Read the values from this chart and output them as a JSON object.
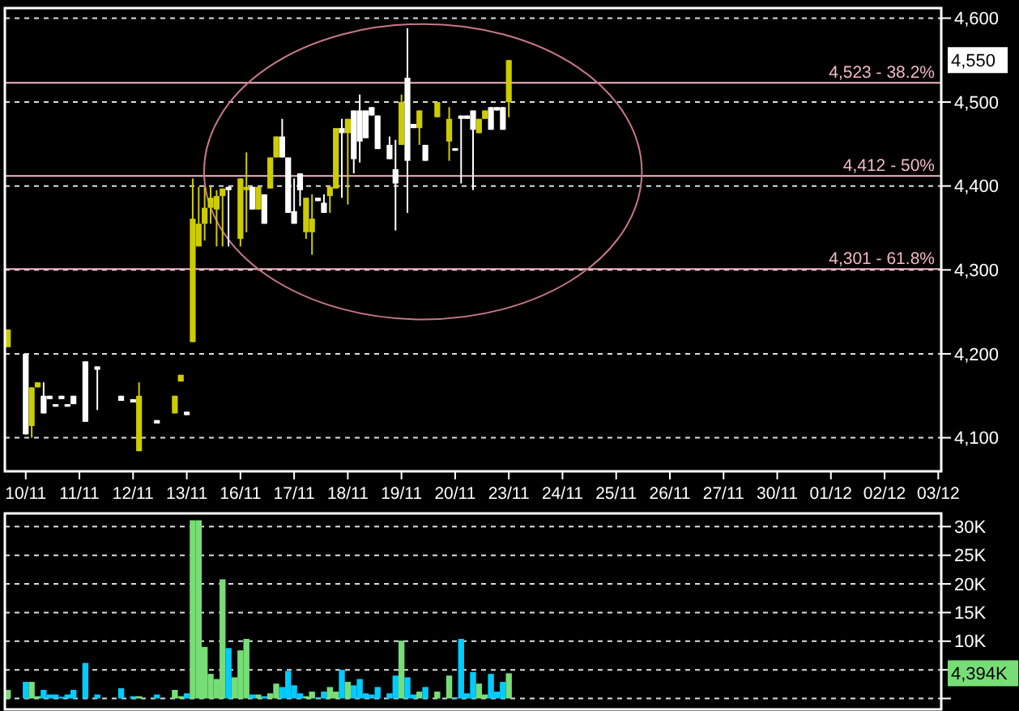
{
  "chart_data": [
    {
      "type": "candlestick",
      "categories": [
        null,
        null,
        null,
        "10/11",
        null,
        null,
        null,
        null,
        null,
        null,
        null,
        null,
        "11/11",
        null,
        null,
        null,
        null,
        null,
        null,
        null,
        null,
        "12/11",
        null,
        null,
        null,
        null,
        null,
        null,
        null,
        null,
        "13/11",
        null,
        null,
        null,
        null,
        null,
        null,
        null,
        null,
        "16/11",
        null,
        null,
        null,
        null,
        null,
        null,
        null,
        null,
        "17/11",
        null,
        null,
        null,
        null,
        null,
        null,
        null,
        null,
        "18/11",
        null,
        null,
        null,
        null,
        null,
        null,
        null,
        null,
        "19/11",
        null,
        null,
        null,
        null,
        null,
        null,
        null,
        null,
        "20/11",
        null,
        null,
        null,
        null,
        null,
        null,
        null,
        null,
        "23/11",
        null,
        null,
        null,
        null,
        null,
        null,
        null,
        null,
        "24/11",
        null,
        null,
        null,
        null,
        null,
        null,
        null,
        null,
        "25/11",
        null,
        null,
        null,
        null,
        null,
        null,
        null,
        null,
        "26/11",
        null,
        null,
        null,
        null,
        null,
        null,
        null,
        null,
        "27/11",
        null,
        null,
        null,
        null,
        null,
        null,
        null,
        null,
        "30/11",
        null,
        null,
        null,
        null,
        null,
        null,
        null,
        null,
        "01/12",
        null,
        null,
        null,
        null,
        null,
        null,
        null,
        null,
        "02/12",
        null,
        null,
        null,
        null,
        null,
        null,
        null,
        null,
        "03/12"
      ],
      "ohlc": [
        [
          4208,
          4229,
          4208,
          4229
        ],
        null,
        null,
        [
          4200,
          4200,
          4104,
          4104
        ],
        [
          4114,
          4160,
          4100,
          4160
        ],
        [
          4160,
          4166,
          4160,
          4166
        ],
        [
          4150,
          4166,
          4129,
          4129
        ],
        [
          4150,
          4150,
          4146,
          4146
        ],
        [
          4140,
          4140,
          4137,
          4137
        ],
        [
          4150,
          4150,
          4146,
          4146
        ],
        [
          4140,
          4140,
          4137,
          4137
        ],
        [
          4150,
          4150,
          4140,
          4140
        ],
        null,
        [
          4191,
          4191,
          4119,
          4119
        ],
        null,
        [
          4185,
          4185,
          4133,
          4181
        ],
        null,
        null,
        null,
        [
          4150,
          4150,
          4144,
          4144
        ],
        null,
        [
          4146,
          4146,
          4142,
          4142
        ],
        [
          4084,
          4166,
          4084,
          4150
        ],
        null,
        null,
        [
          4121,
          4121,
          4117,
          4117
        ],
        null,
        null,
        [
          4129,
          4150,
          4129,
          4150
        ],
        [
          4167,
          4175,
          4167,
          4175
        ],
        [
          4131,
          4131,
          4127,
          4127
        ],
        [
          4214,
          4409,
          4214,
          4361
        ],
        [
          4328,
          4399,
          4328,
          4355
        ],
        [
          4355,
          4399,
          4335,
          4374
        ],
        [
          4374,
          4399,
          4355,
          4386
        ],
        [
          4372,
          4395,
          4328,
          4388
        ],
        [
          4388,
          4397,
          4328,
          4397
        ],
        [
          4399,
          4399,
          4328,
          4395
        ],
        null,
        [
          4337,
          4409,
          4328,
          4409
        ],
        [
          4395,
          4440,
          4345,
          4399
        ],
        [
          4399,
          4399,
          4372,
          4372
        ],
        [
          4372,
          4399,
          4372,
          4399
        ],
        [
          4390,
          4390,
          4355,
          4355
        ],
        [
          4397,
          4434,
          4397,
          4434
        ],
        [
          4434,
          4459,
          4434,
          4459
        ],
        [
          4459,
          4480,
          4434,
          4434
        ],
        [
          4434,
          4434,
          4368,
          4368
        ],
        [
          4370,
          4409,
          4355,
          4355
        ],
        [
          4415,
          4415,
          4376,
          4395
        ],
        [
          4345,
          4386,
          4337,
          4386
        ],
        [
          4345,
          4390,
          4318,
          4361
        ],
        [
          4386,
          4386,
          4382,
          4382
        ],
        [
          4380,
          4390,
          4368,
          4368
        ],
        [
          4388,
          4399,
          4368,
          4399
        ],
        [
          4397,
          4469,
          4397,
          4469
        ],
        [
          4469,
          4480,
          4386,
          4463
        ],
        [
          4463,
          4480,
          4378,
          4480
        ],
        [
          4490,
          4490,
          4415,
          4432
        ],
        [
          4490,
          4509,
          4428,
          4453
        ],
        [
          4490,
          4490,
          4457,
          4457
        ],
        [
          4494,
          4494,
          4484,
          4484
        ],
        [
          4484,
          4484,
          4444,
          4444
        ],
        null,
        [
          4449,
          4459,
          4432,
          4432
        ],
        [
          4420,
          4455,
          4347,
          4403
        ],
        [
          4449,
          4509,
          4449,
          4500
        ],
        [
          4529,
          4588,
          4368,
          4430
        ],
        [
          4474,
          4474,
          4469,
          4469
        ],
        [
          4469,
          4490,
          4449,
          4490
        ],
        [
          4449,
          4449,
          4430,
          4430
        ],
        null,
        [
          4482,
          4500,
          4482,
          4500
        ],
        null,
        [
          4453,
          4494,
          4430,
          4480
        ],
        [
          4445,
          4445,
          4442,
          4442
        ],
        [
          4484,
          4484,
          4403,
          4480
        ],
        [
          4484,
          4484,
          4480,
          4480
        ],
        [
          4490,
          4490,
          4395,
          4467
        ],
        [
          4463,
          4480,
          4463,
          4480
        ],
        [
          4480,
          4490,
          4480,
          4490
        ],
        [
          4494,
          4494,
          4467,
          4467
        ],
        [
          4494,
          4494,
          4490,
          4490
        ],
        [
          4494,
          4494,
          4467,
          4467
        ],
        [
          4500,
          4550,
          4482,
          4550
        ],
        null,
        null,
        null,
        null,
        null,
        null,
        null,
        null,
        null,
        null,
        null,
        null,
        null,
        null,
        null,
        null,
        null,
        null,
        null,
        null,
        null,
        null,
        null,
        null,
        null,
        null,
        null,
        null,
        null,
        null,
        null,
        null,
        null,
        null,
        null,
        null,
        null,
        null,
        null,
        null,
        null,
        null,
        null,
        null,
        null,
        null,
        null,
        null,
        null,
        null,
        null,
        null,
        null,
        null,
        null,
        null,
        null,
        null,
        null,
        null,
        null,
        null,
        null,
        null,
        null,
        null,
        null,
        null,
        null,
        null,
        null,
        null
      ],
      "colors": [
        "#cccc00",
        null,
        null,
        "#ffffff",
        "#cccc00",
        "#cccc00",
        "#ffffff",
        "#ffffff",
        "#ffffff",
        "#ffffff",
        "#ffffff",
        "#ffffff",
        null,
        "#ffffff",
        null,
        "#ffffff",
        null,
        null,
        null,
        "#ffffff",
        null,
        "#ffffff",
        "#cccc00",
        null,
        null,
        "#ffffff",
        null,
        null,
        "#cccc00",
        "#cccc00",
        "#ffffff",
        "#cccc00",
        "#cccc00",
        "#cccc00",
        "#cccc00",
        "#cccc00",
        "#cccc00",
        "#ffffff",
        null,
        "#cccc00",
        "#cccc00",
        "#ffffff",
        "#cccc00",
        "#ffffff",
        "#cccc00",
        "#cccc00",
        "#ffffff",
        "#ffffff",
        "#ffffff",
        "#ffffff",
        "#cccc00",
        "#cccc00",
        "#ffffff",
        "#ffffff",
        "#cccc00",
        "#cccc00",
        "#ffffff",
        "#cccc00",
        "#ffffff",
        "#ffffff",
        "#ffffff",
        "#ffffff",
        "#ffffff",
        null,
        "#ffffff",
        "#ffffff",
        "#cccc00",
        "#ffffff",
        "#ffffff",
        "#cccc00",
        "#ffffff",
        null,
        "#cccc00",
        null,
        "#cccc00",
        "#ffffff",
        "#ffffff",
        "#ffffff",
        "#ffffff",
        "#cccc00",
        "#cccc00",
        "#ffffff",
        "#ffffff",
        "#ffffff",
        "#cccc00",
        null,
        null,
        null,
        null,
        null,
        null,
        null,
        null,
        null,
        null,
        null,
        null,
        null,
        null,
        null,
        null,
        null,
        null,
        null,
        null,
        null,
        null,
        null,
        null,
        null,
        null,
        null,
        null,
        null,
        null,
        null,
        null,
        null,
        null,
        null,
        null,
        null,
        null,
        null,
        null,
        null,
        null,
        null,
        null,
        null,
        null,
        null,
        null,
        null,
        null,
        null,
        null,
        null,
        null,
        null,
        null,
        null,
        null,
        null,
        null,
        null,
        null,
        null,
        null,
        null,
        null,
        null,
        null,
        null,
        null,
        null,
        null
      ],
      "ylim": [
        4060,
        4612
      ],
      "yticks": [
        {
          "value": 4100,
          "label": "4,100"
        },
        {
          "value": 4200,
          "label": "4,200"
        },
        {
          "value": 4300,
          "label": "4,300"
        },
        {
          "value": 4400,
          "label": "4,400"
        },
        {
          "value": 4500,
          "label": "4,500"
        },
        {
          "value": 4600,
          "label": "4,600"
        }
      ],
      "grid": "y",
      "ref_lines": [
        {
          "axis": "y",
          "value": 4523,
          "label": "4,523 - 38.2%",
          "color": "#f4b8c4"
        },
        {
          "axis": "y",
          "value": 4412,
          "label": "4,412 - 50%",
          "color": "#f4b8c4"
        },
        {
          "axis": "y",
          "value": 4301,
          "label": "4,301 - 61.8%",
          "color": "#f4b8c4"
        }
      ],
      "annotations": [
        "4,550"
      ]
    },
    {
      "type": "bar",
      "categories": [
        null,
        null,
        null,
        null,
        null,
        null,
        null,
        null,
        null,
        null,
        null,
        null,
        null,
        null,
        null,
        null,
        null,
        null,
        null,
        null,
        null,
        null,
        null,
        null,
        null,
        null,
        null,
        null,
        null,
        null,
        null,
        null,
        null,
        null,
        null,
        null,
        null,
        null,
        null,
        null,
        null,
        null,
        null,
        null,
        null,
        null,
        null,
        null,
        null,
        null,
        null,
        null,
        null,
        null,
        null,
        null,
        null,
        null,
        null,
        null,
        null,
        null,
        null,
        null,
        null,
        null,
        null,
        null,
        null,
        null,
        null,
        null,
        null,
        null,
        null,
        null,
        null,
        null,
        null,
        null,
        null,
        null,
        null,
        null,
        null,
        null,
        null,
        null,
        null,
        null,
        null,
        null,
        null,
        null,
        null,
        null,
        null,
        null,
        null,
        null,
        null,
        null,
        null,
        null,
        null,
        null,
        null,
        null,
        null,
        null,
        null,
        null,
        null,
        null,
        null,
        null,
        null,
        null,
        null,
        null,
        null,
        null,
        null,
        null,
        null,
        null,
        null,
        null,
        null,
        null,
        null,
        null,
        null,
        null,
        null,
        null,
        null,
        null,
        null,
        null,
        null,
        null,
        null,
        null,
        null,
        null,
        null,
        null,
        null,
        null,
        null,
        null,
        null,
        null,
        null,
        null,
        null
      ],
      "values": [
        1500,
        null,
        null,
        2900,
        2900,
        400,
        1500,
        700,
        700,
        300,
        700,
        1500,
        null,
        6200,
        null,
        700,
        null,
        null,
        null,
        1800,
        null,
        400,
        400,
        null,
        null,
        700,
        null,
        null,
        1500,
        400,
        900,
        31100,
        31100,
        9000,
        4300,
        3400,
        20800,
        8800,
        3700,
        8400,
        10400,
        700,
        700,
        400,
        900,
        2600,
        2000,
        4800,
        2300,
        900,
        400,
        1200,
        200,
        1200,
        2000,
        1200,
        5000,
        2900,
        2300,
        3400,
        900,
        700,
        2000,
        null,
        900,
        4000,
        10100,
        3700,
        700,
        1200,
        2000,
        null,
        1200,
        null,
        4000,
        200,
        10400,
        900,
        4600,
        2600,
        700,
        4300,
        1200,
        2900,
        4400,
        null,
        null,
        null,
        null,
        null,
        null,
        null,
        null,
        null,
        null,
        null,
        null,
        null,
        null,
        null,
        null,
        null,
        null,
        null,
        null,
        null,
        null,
        null,
        null,
        null,
        null,
        null,
        null,
        null,
        null,
        null,
        null,
        null,
        null,
        null,
        null,
        null,
        null,
        null,
        null,
        null,
        null,
        null,
        null,
        null,
        null,
        null,
        null,
        null,
        null,
        null,
        null,
        null,
        null,
        null,
        null,
        null,
        null,
        null,
        null,
        null,
        null,
        null,
        null,
        null,
        null,
        null,
        null,
        null,
        null,
        null,
        null
      ],
      "colors": [
        "#77dd77",
        null,
        null,
        "#00ccff",
        "#77dd77",
        "#77dd77",
        "#00ccff",
        "#00ccff",
        "#00ccff",
        "#00ccff",
        "#00ccff",
        "#00ccff",
        null,
        "#00ccff",
        null,
        "#00ccff",
        null,
        null,
        null,
        "#00ccff",
        null,
        "#00ccff",
        "#77dd77",
        null,
        null,
        "#00ccff",
        null,
        null,
        "#77dd77",
        "#77dd77",
        "#00ccff",
        "#77dd77",
        "#77dd77",
        "#77dd77",
        "#77dd77",
        "#77dd77",
        "#77dd77",
        "#00ccff",
        "#77dd77",
        "#77dd77",
        "#77dd77",
        "#00ccff",
        "#77dd77",
        "#00ccff",
        "#77dd77",
        "#77dd77",
        "#00ccff",
        "#00ccff",
        "#00ccff",
        "#00ccff",
        "#77dd77",
        "#77dd77",
        "#00ccff",
        "#00ccff",
        "#77dd77",
        "#77dd77",
        "#00ccff",
        "#77dd77",
        "#00ccff",
        "#00ccff",
        "#00ccff",
        "#00ccff",
        "#00ccff",
        null,
        "#00ccff",
        "#00ccff",
        "#77dd77",
        "#00ccff",
        "#00ccff",
        "#77dd77",
        "#00ccff",
        null,
        "#77dd77",
        null,
        "#77dd77",
        "#00ccff",
        "#00ccff",
        "#00ccff",
        "#00ccff",
        "#77dd77",
        "#77dd77",
        "#00ccff",
        "#00ccff",
        "#00ccff",
        "#77dd77",
        null,
        null,
        null,
        null,
        null,
        null,
        null,
        null,
        null,
        null,
        null,
        null,
        null,
        null,
        null,
        null,
        null,
        null,
        null,
        null,
        null,
        null,
        null,
        null,
        null,
        null,
        null,
        null,
        null,
        null,
        null,
        null,
        null,
        null,
        null,
        null,
        null,
        null,
        null,
        null,
        null,
        null,
        null,
        null,
        null,
        null,
        null,
        null,
        null,
        null,
        null,
        null,
        null,
        null,
        null,
        null,
        null,
        null,
        null,
        null,
        null,
        null,
        null,
        null,
        null,
        null,
        null,
        null,
        null,
        null,
        null,
        null
      ],
      "ylim": [
        -1900,
        32300
      ],
      "yticks": [
        {
          "value": 0,
          "label": null
        },
        {
          "value": 5000,
          "label": null
        },
        {
          "value": 10000,
          "label": "10K"
        },
        {
          "value": 15000,
          "label": "15K"
        },
        {
          "value": 20000,
          "label": "20K"
        },
        {
          "value": 25000,
          "label": "25K"
        },
        {
          "value": 30000,
          "label": "30K"
        }
      ],
      "grid": "y",
      "annotations": [
        "4,394K"
      ]
    }
  ]
}
